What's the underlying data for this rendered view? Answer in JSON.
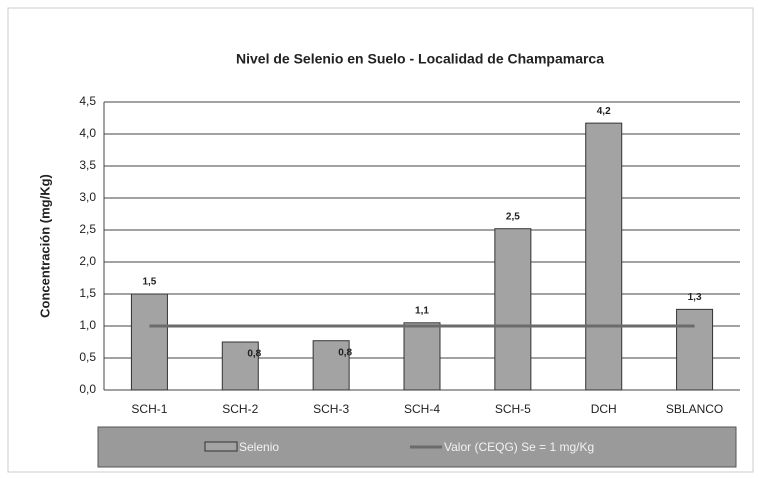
{
  "chart_data": {
    "type": "bar",
    "title": "Nivel de Selenio en Suelo  -  Localidad de Champamarca",
    "y_label": "Concentración (mg/Kg)",
    "categories": [
      "SCH-1",
      "SCH-2",
      "SCH-3",
      "SCH-4",
      "SCH-5",
      "DCH",
      "SBLANCO"
    ],
    "series": [
      {
        "name": "Selenio",
        "type": "bar",
        "color": "#a3a3a3",
        "values": [
          1.5,
          0.75,
          0.77,
          1.05,
          2.52,
          4.17,
          1.26
        ],
        "value_labels": [
          "1,5",
          "0,8",
          "0,8",
          "1,1",
          "2,5",
          "4,2",
          "1,3"
        ]
      },
      {
        "name": "Valor (CEQG) Se = 1 mg/Kg",
        "type": "line",
        "color": "#6b6b6b",
        "values": [
          1,
          1,
          1,
          1,
          1,
          1,
          1
        ]
      }
    ],
    "ylim": [
      0,
      4.5
    ],
    "yticks": [
      {
        "value": 0,
        "label": "0,0"
      },
      {
        "value": 0.5,
        "label": "0,5"
      },
      {
        "value": 1,
        "label": "1,0"
      },
      {
        "value": 1.5,
        "label": "1,5"
      },
      {
        "value": 2,
        "label": "2,0"
      },
      {
        "value": 2.5,
        "label": "2,5"
      },
      {
        "value": 3,
        "label": "3,0"
      },
      {
        "value": 3.5,
        "label": "3,5"
      },
      {
        "value": 4,
        "label": "4,0"
      },
      {
        "value": 4.5,
        "label": "4,5"
      }
    ],
    "grid": true
  }
}
